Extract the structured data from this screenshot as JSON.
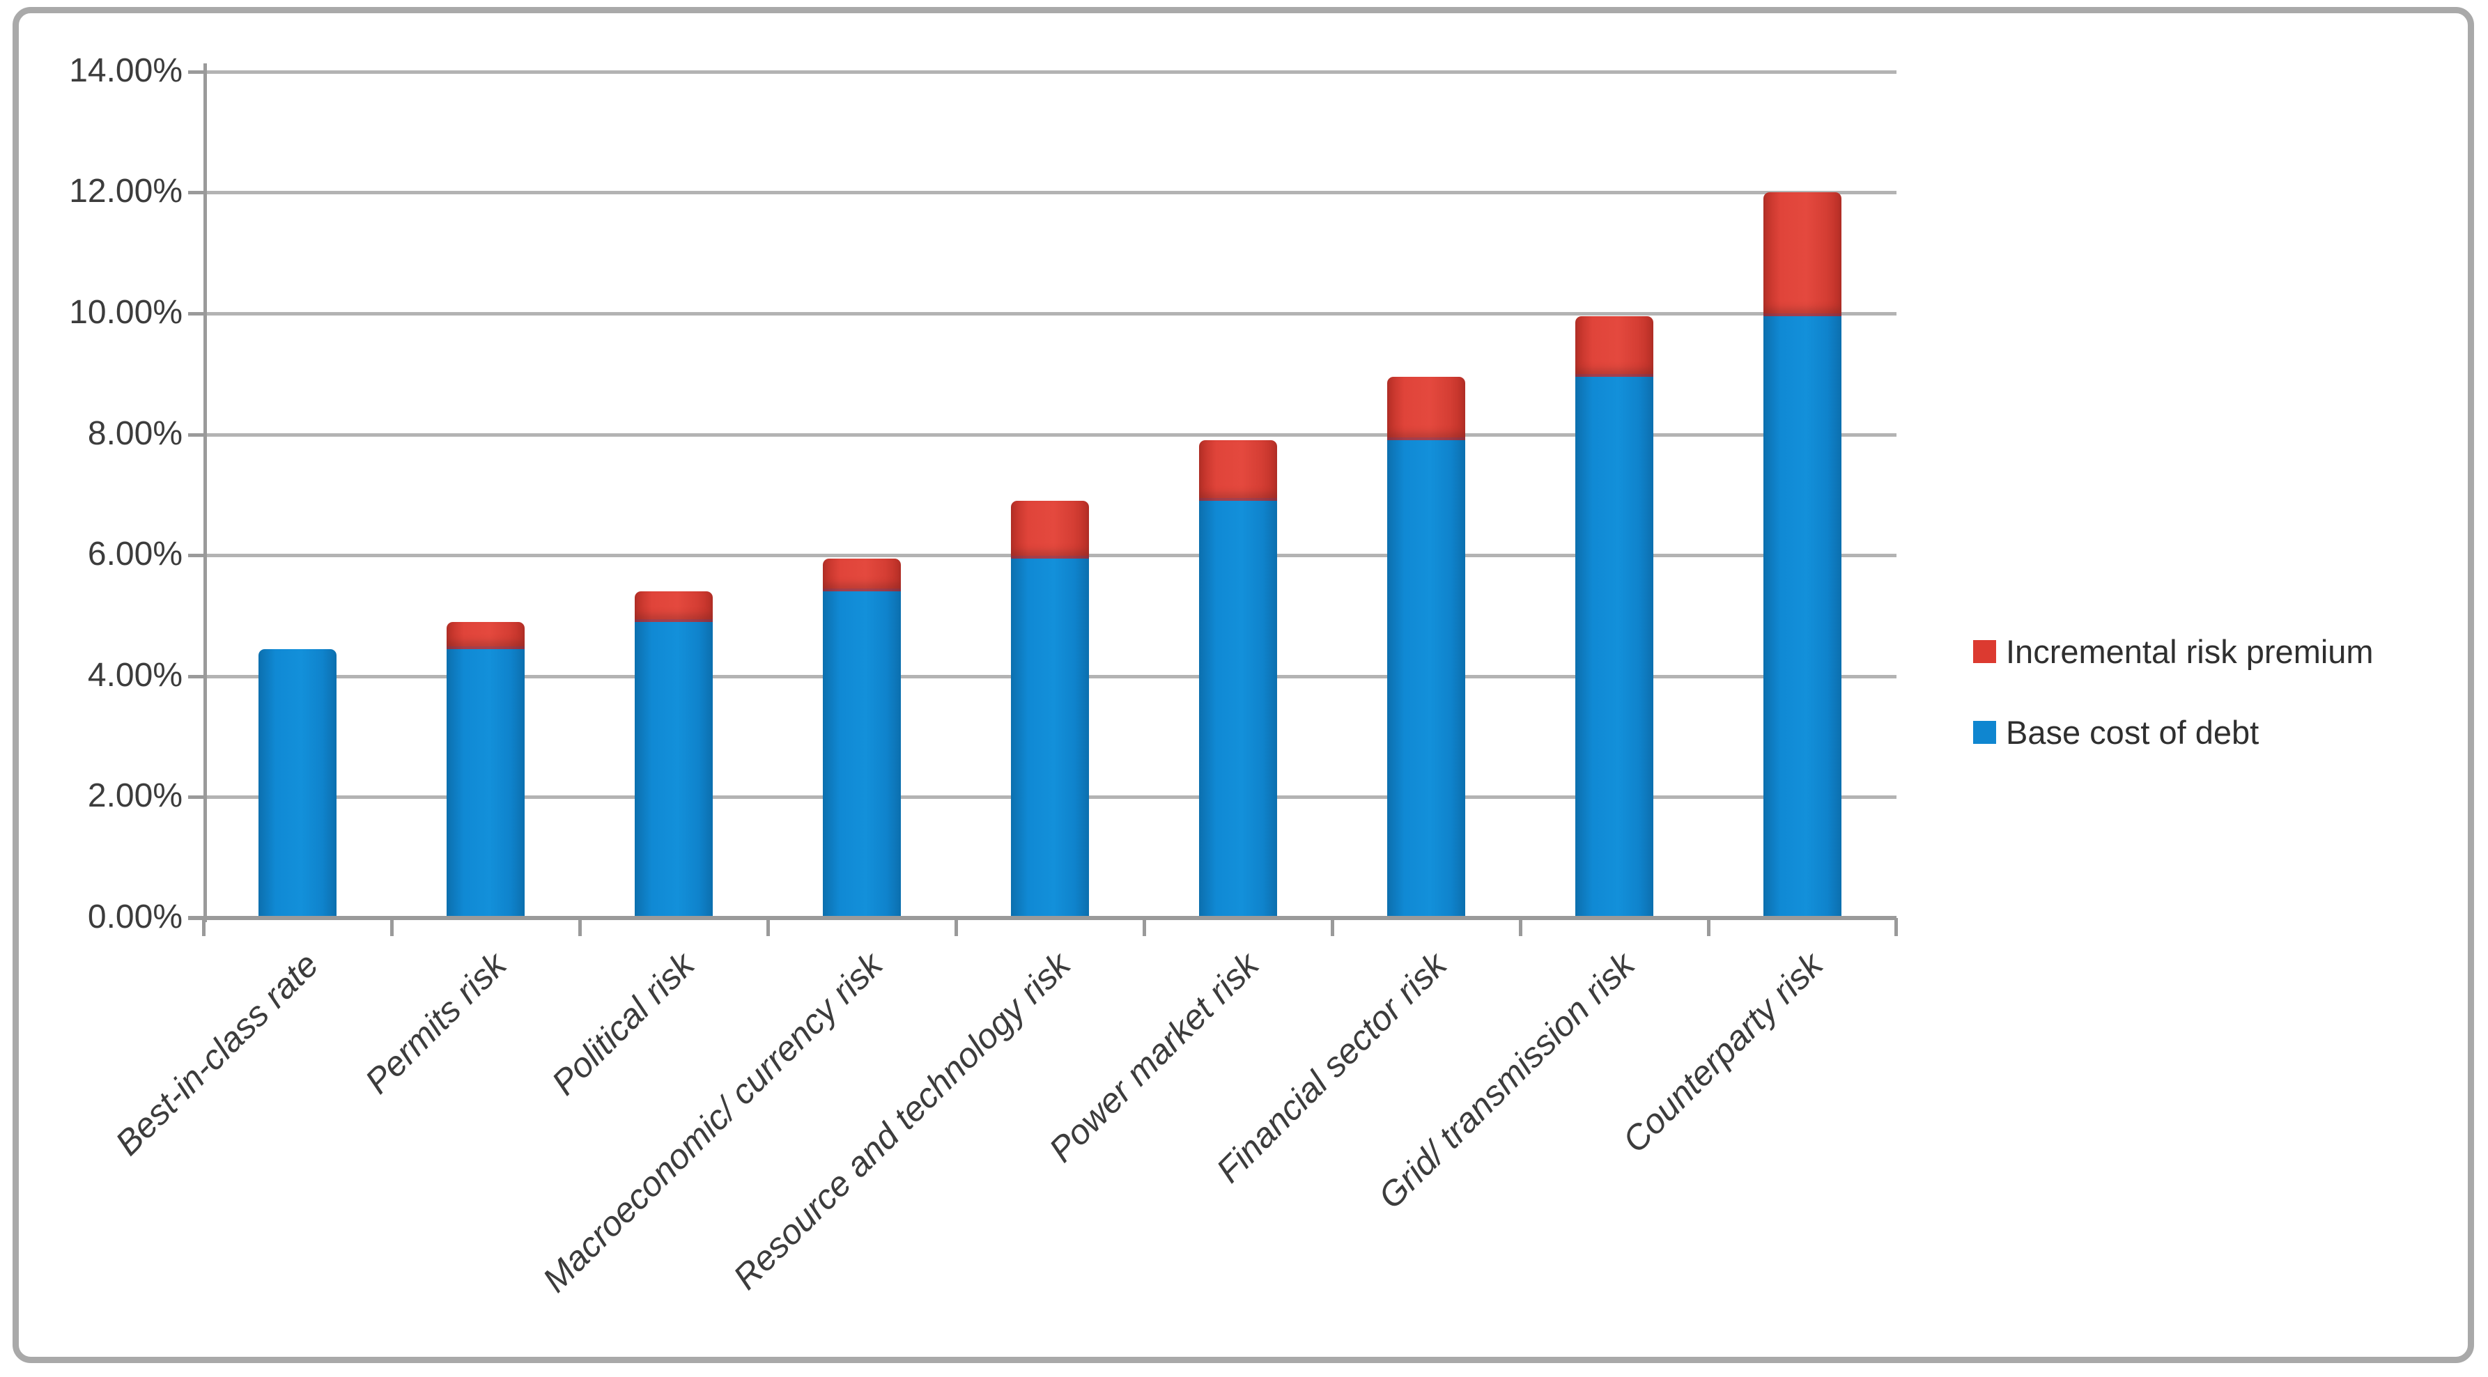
{
  "chart_data": {
    "type": "bar",
    "stacked": true,
    "title": "",
    "xlabel": "",
    "ylabel": "",
    "categories": [
      "Best-in-class rate",
      "Permits risk",
      "Political risk",
      "Macroeconomic/ currency risk",
      "Resource and technology risk",
      "Power market risk",
      "Financial sector risk",
      "Grid/ transmission risk",
      "Counterparty risk"
    ],
    "series": [
      {
        "name": "Base cost of debt",
        "color": "#0f86d0",
        "values": [
          4.45,
          4.45,
          4.9,
          5.4,
          5.95,
          6.9,
          7.9,
          8.95,
          9.95
        ]
      },
      {
        "name": "Incremental risk premium",
        "color": "#dc3a30",
        "values": [
          0.0,
          0.45,
          0.5,
          0.55,
          0.95,
          1.0,
          1.05,
          1.0,
          2.05
        ]
      }
    ],
    "totals": [
      4.45,
      4.9,
      5.4,
      5.95,
      6.9,
      7.9,
      8.95,
      9.95,
      12.0
    ],
    "ylim": [
      0,
      14
    ],
    "ytick_step": 2,
    "ytick_labels": [
      "0.00%",
      "2.00%",
      "4.00%",
      "6.00%",
      "8.00%",
      "10.00%",
      "12.00%",
      "14.00%"
    ],
    "grid": true,
    "legend_position": "middle-right",
    "legend_items": [
      {
        "label": "Incremental risk premium",
        "color": "#dc3a30"
      },
      {
        "label": "Base cost of debt",
        "color": "#0f86d0"
      }
    ]
  },
  "style_colors": {
    "gridline": "#b3b3b3",
    "axis": "#9a9a9a",
    "text": "#3c3c3c",
    "frame_border": "#a9a9a9",
    "background": "#ffffff"
  }
}
